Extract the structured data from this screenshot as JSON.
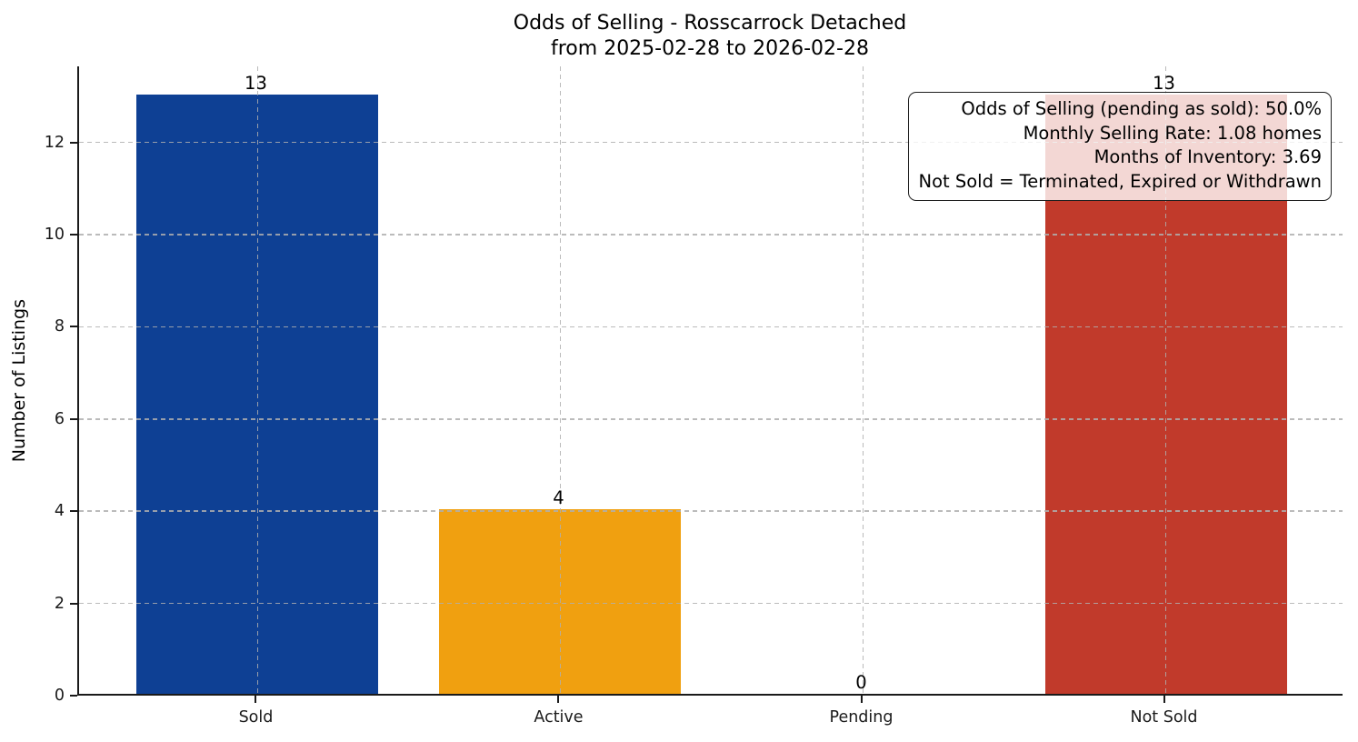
{
  "figure": {
    "title_line1": "Odds of Selling - Rosscarrock Detached",
    "title_line2": "from 2025-02-28 to 2026-02-28"
  },
  "chart_data": {
    "type": "bar",
    "title": "Odds of Selling - Rosscarrock Detached\nfrom 2025-02-28 to 2026-02-28",
    "categories": [
      "Sold",
      "Active",
      "Pending",
      "Not Sold"
    ],
    "values": [
      13,
      4,
      0,
      13
    ],
    "value_labels": [
      "13",
      "4",
      "0",
      "13"
    ],
    "bar_colors": [
      "#0e4094",
      "#f0a010",
      null,
      "#c13a2b"
    ],
    "xlabel": "",
    "ylabel": "Number of Listings",
    "yticks": [
      0,
      2,
      4,
      6,
      8,
      10,
      12
    ],
    "ylim": [
      0,
      13.65
    ],
    "grid": "both-dashed-drawn-above-bars",
    "legend_position": "none",
    "annotation_lines": [
      "Odds of Selling (pending as sold): 50.0%",
      "Monthly Selling Rate: 1.08 homes",
      "Months of Inventory: 3.69",
      "Not Sold = Terminated, Expired or Withdrawn"
    ]
  },
  "colors": {
    "sold_bar": "#0e4094",
    "active_bar": "#f0a010",
    "not_sold_bar": "#c13a2b",
    "grid_line": "#afafaf",
    "spine": "#1a1a1a",
    "annotation_border": "#1f1f1f",
    "annotation_background": "rgba(255,255,255,0.8)"
  }
}
